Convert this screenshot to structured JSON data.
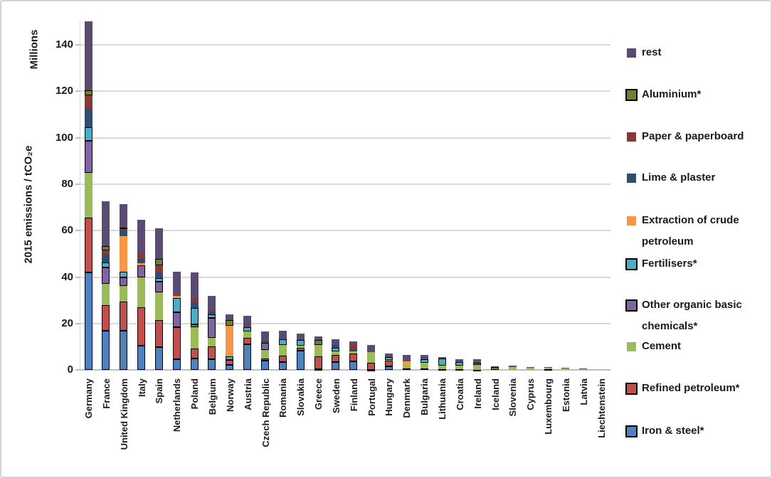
{
  "chart_data": {
    "type": "bar",
    "subtype": "stacked-vertical",
    "title": "",
    "ylabel": "2015 emissions / tCO₂e",
    "ylabel_unit": "Millions",
    "ylim": [
      0,
      150
    ],
    "yticks": [
      0,
      20,
      40,
      60,
      80,
      100,
      120,
      140
    ],
    "grid": true,
    "legend_position": "right",
    "categories": [
      "Germany",
      "France",
      "United Kingdom",
      "Italy",
      "Spain",
      "Netherlands",
      "Poland",
      "Belgium",
      "Norway",
      "Austria",
      "Czech Republic",
      "Romania",
      "Slovakia",
      "Greece",
      "Sweden",
      "Finland",
      "Portugal",
      "Hungary",
      "Denmark",
      "Bulgaria",
      "Lithuania",
      "Croatia",
      "Ireland",
      "Iceland",
      "Slovenia",
      "Cyprus",
      "Luxembourg",
      "Estonia",
      "Latvia",
      "Liechtenstein"
    ],
    "series": [
      {
        "name": "rest",
        "color": "#5a4b73",
        "outlined": false,
        "values": [
          29.5,
          19,
          10.2,
          14.2,
          13.2,
          10,
          11.2,
          6,
          2.6,
          4.2,
          3.9,
          3.5,
          2.5,
          1.5,
          2.6,
          0.8,
          2.9,
          1.4,
          2.8,
          2,
          0.7,
          1.2,
          1.6,
          0.2,
          0.8,
          0.2,
          0.3,
          0.3,
          0.1,
          0
        ]
      },
      {
        "name": "Aluminium*",
        "color": "#71802b",
        "outlined": true,
        "values": [
          2.3,
          1.9,
          0.3,
          0,
          2.8,
          0,
          0,
          0,
          2.3,
          0,
          0,
          0,
          0,
          2.1,
          0,
          0,
          0,
          0,
          0,
          0,
          0,
          0,
          0.8,
          1.3,
          0,
          0,
          0,
          0,
          0,
          0
        ]
      },
      {
        "name": "Paper & paperboard",
        "color": "#873936",
        "outlined": false,
        "values": [
          5.9,
          2,
          0.8,
          2.6,
          3.1,
          0.5,
          1.6,
          0.8,
          0,
          0.8,
          0,
          0,
          0,
          0,
          0,
          2.4,
          0,
          0,
          0,
          0,
          0,
          0,
          0,
          0,
          0,
          0,
          0,
          0,
          0,
          0
        ]
      },
      {
        "name": "Lime & plaster",
        "color": "#2f4e6f",
        "outlined": false,
        "values": [
          7.9,
          3.4,
          2.5,
          1.8,
          2.3,
          0,
          2.6,
          1.2,
          0,
          0,
          1,
          0,
          0.4,
          0,
          1.2,
          1,
          0,
          0,
          0,
          0,
          0,
          0,
          0,
          0,
          0,
          0,
          0,
          0,
          0.4,
          0
        ]
      },
      {
        "name": "Extraction of crude petroleum",
        "color": "#f79646",
        "outlined": false,
        "values": [
          0,
          0,
          15.3,
          1,
          0,
          1,
          0,
          0,
          13.3,
          0,
          0,
          0,
          0,
          0,
          0,
          0,
          0,
          0,
          1.8,
          0,
          0,
          0,
          0,
          0,
          0,
          0,
          0,
          0,
          0,
          0
        ]
      },
      {
        "name": "Fertilisers*",
        "color": "#4bacc6",
        "outlined": true,
        "values": [
          5.6,
          2,
          2.6,
          0,
          1.5,
          5.9,
          7.1,
          1.5,
          1.4,
          1.8,
          0,
          2.6,
          2.4,
          0,
          1.3,
          0,
          0,
          1.2,
          0,
          1.5,
          3,
          1.5,
          0,
          0,
          0,
          0,
          0,
          0,
          0,
          0
        ]
      },
      {
        "name": "Other organic basic chemicals*",
        "color": "#8064a2",
        "outlined": true,
        "values": [
          13.8,
          7,
          3.6,
          5,
          4.6,
          6.6,
          1.2,
          8.7,
          0,
          0,
          3,
          0,
          0,
          0,
          0,
          0,
          0,
          0,
          0,
          0,
          0,
          0,
          0,
          0,
          0,
          0,
          0,
          0,
          0,
          0
        ]
      },
      {
        "name": "Cement",
        "color": "#9bbb59",
        "outlined": false,
        "values": [
          19.5,
          9.2,
          6.6,
          13,
          12,
          0,
          9.2,
          3.6,
          0,
          2.7,
          3.6,
          4.6,
          1,
          5.1,
          1.6,
          1.1,
          4.7,
          0.4,
          1.2,
          2.4,
          1.5,
          1.5,
          2,
          0,
          1.2,
          1.2,
          0.6,
          0.7,
          0.3,
          0
        ]
      },
      {
        "name": "Refined petroleum*",
        "color": "#c0504d",
        "outlined": true,
        "values": [
          23.5,
          11,
          12.6,
          16.5,
          11.5,
          13.6,
          4.1,
          5.6,
          2.2,
          3,
          1,
          2.5,
          1.1,
          5.5,
          3.2,
          3.2,
          2.9,
          2.4,
          0.8,
          0.7,
          0.4,
          0.5,
          0.2,
          0,
          0,
          0,
          0,
          0,
          0,
          0
        ]
      },
      {
        "name": "Iron & steel*",
        "color": "#4f81bd",
        "outlined": true,
        "values": [
          42,
          17,
          17,
          10.5,
          10,
          4.8,
          5.1,
          4.6,
          2.2,
          11,
          4,
          3.6,
          8.4,
          0.3,
          3.4,
          3.8,
          0.2,
          1.7,
          0,
          0,
          0,
          0,
          0,
          0,
          0,
          0,
          0.3,
          0,
          0,
          0
        ]
      }
    ]
  },
  "y_axis": {
    "unit_label": "Millions",
    "title": "2015 emissions / tCO₂e",
    "tick_labels": [
      "0",
      "20",
      "40",
      "60",
      "80",
      "100",
      "120",
      "140"
    ]
  },
  "legend": {
    "items": [
      "rest",
      "Aluminium*",
      "Paper & paperboard",
      "Lime & plaster",
      "Extraction of crude petroleum",
      "Fertilisers*",
      "Other organic basic chemicals*",
      "Cement",
      "Refined petroleum*",
      "Iron & steel*"
    ]
  },
  "colors": {
    "grid": "#d9d9d9",
    "axis": "#bfbfbf",
    "text": "#1a1a1a"
  }
}
